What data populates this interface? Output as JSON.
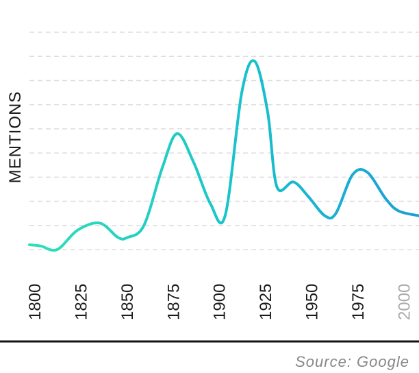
{
  "colors": {
    "line_start": "#2fe0b8",
    "line_mid": "#17c2cc",
    "line_end": "#1a9fd6",
    "grid": "#dddddd",
    "tick": "#1a1a1a",
    "tick_muted": "#aaaaaa",
    "baseline": "#111111"
  },
  "footer": {
    "source": "Source: Google"
  },
  "chart_data": {
    "type": "line",
    "title": "",
    "xlabel": "",
    "ylabel": "MENTIONS",
    "ylim": [
      0,
      9
    ],
    "grid": true,
    "x_ticks": [
      {
        "label": "1800",
        "value": 1800,
        "muted": false
      },
      {
        "label": "1825",
        "value": 1825,
        "muted": false
      },
      {
        "label": "1850",
        "value": 1850,
        "muted": false
      },
      {
        "label": "1875",
        "value": 1875,
        "muted": false
      },
      {
        "label": "1900",
        "value": 1900,
        "muted": false
      },
      {
        "label": "1925",
        "value": 1925,
        "muted": false
      },
      {
        "label": "1950",
        "value": 1950,
        "muted": false
      },
      {
        "label": "1975",
        "value": 1975,
        "muted": false
      },
      {
        "label": "2000",
        "value": 2000,
        "muted": true
      }
    ],
    "series": [
      {
        "x": [
          1800,
          1806,
          1815,
          1826,
          1838,
          1848,
          1853,
          1862,
          1872,
          1880,
          1889,
          1898,
          1906,
          1915,
          1922,
          1929,
          1934,
          1943,
          1951,
          1960,
          1966,
          1975,
          1983,
          1993,
          2000,
          2011
        ],
        "y": [
          0.2,
          0.15,
          0.0,
          0.8,
          1.1,
          0.5,
          0.5,
          1.0,
          3.4,
          4.8,
          3.6,
          1.9,
          1.4,
          6.5,
          7.8,
          5.7,
          2.6,
          2.8,
          2.2,
          1.4,
          1.5,
          3.1,
          3.2,
          2.1,
          1.6,
          1.4
        ]
      }
    ]
  }
}
